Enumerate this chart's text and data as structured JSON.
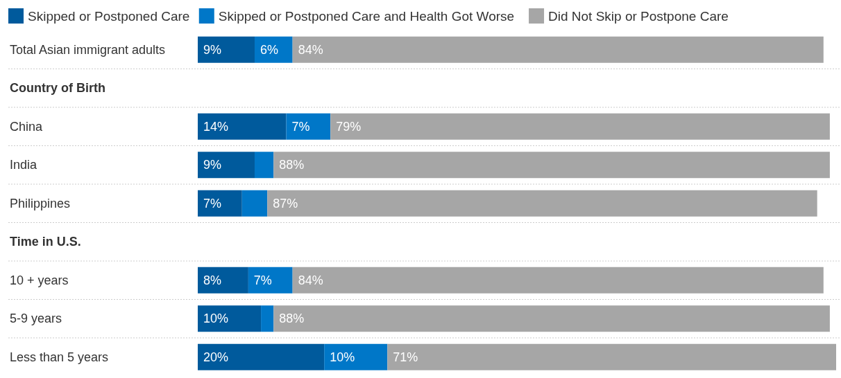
{
  "chart_data": {
    "type": "bar",
    "orientation": "horizontal",
    "stacked": true,
    "legend": "top left",
    "categories": [
      "Total Asian immigrant adults",
      "Country of Birth",
      "China",
      "India",
      "Philippines",
      "Time in U.S.",
      "10 + years",
      "5-9 years",
      "Less than 5 years"
    ],
    "series": [
      {
        "name": "Skipped or Postponed Care",
        "color": "#005a9c",
        "values": [
          9,
          null,
          14,
          9,
          7,
          null,
          8,
          10,
          20
        ],
        "value_labels": [
          "9%",
          null,
          "14%",
          "9%",
          "7%",
          null,
          "8%",
          "10%",
          "20%"
        ]
      },
      {
        "name": "Skipped or Postponed Care and Health Got Worse",
        "color": "#0077c8",
        "values": [
          6,
          null,
          7,
          3,
          4,
          null,
          7,
          2,
          10
        ],
        "value_labels": [
          "6%",
          null,
          "7%",
          null,
          null,
          null,
          "7%",
          null,
          "10%"
        ]
      },
      {
        "name": "Did Not Skip or Postpone Care",
        "color": "#a6a6a6",
        "values": [
          84,
          null,
          79,
          88,
          87,
          null,
          84,
          88,
          71
        ],
        "value_labels": [
          "84%",
          null,
          "79%",
          "88%",
          "87%",
          null,
          "84%",
          "88%",
          "71%"
        ]
      }
    ]
  }
}
